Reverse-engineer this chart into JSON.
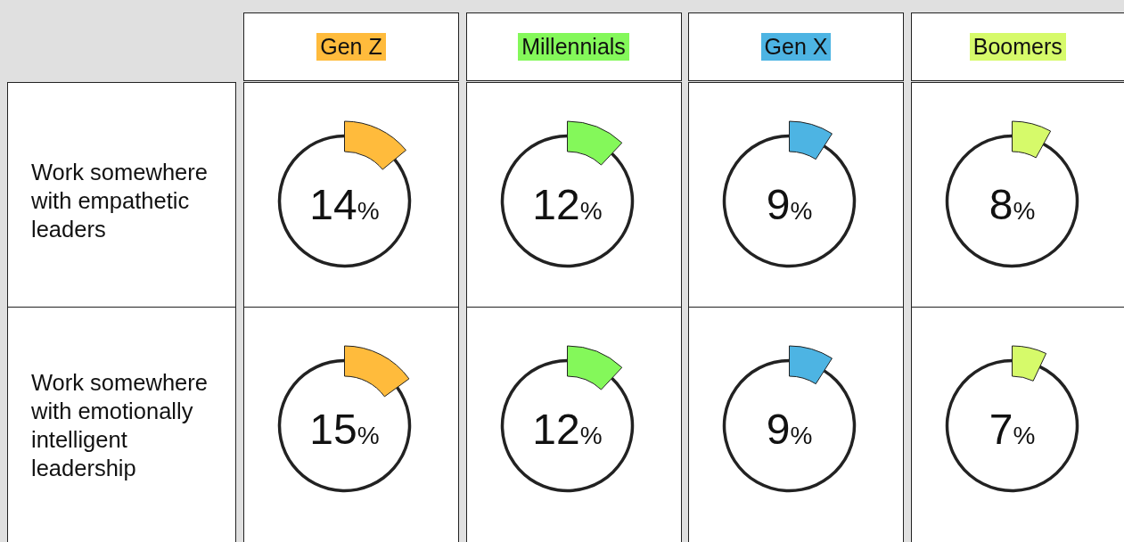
{
  "chart_data": [
    {
      "type": "other",
      "title": "Work somewhere with empathetic leaders"
    },
    {
      "type": "donut",
      "title": "Gen Z",
      "categories": [
        null,
        null
      ],
      "values": [
        14,
        86
      ],
      "colors": [
        "#ffbb3c",
        "#222222"
      ],
      "annotations": [
        "14%"
      ]
    },
    {
      "type": "donut",
      "title": "Millennials",
      "categories": [
        null,
        null
      ],
      "values": [
        12,
        88
      ],
      "colors": [
        "#84f85a",
        "#222222"
      ],
      "annotations": [
        "12%"
      ]
    },
    {
      "type": "donut",
      "title": "Gen X",
      "categories": [
        null,
        null
      ],
      "values": [
        9,
        91
      ],
      "colors": [
        "#4db4e3",
        "#222222"
      ],
      "annotations": [
        "9%"
      ]
    },
    {
      "type": "donut",
      "title": "Boomers",
      "categories": [
        null,
        null
      ],
      "values": [
        8,
        92
      ],
      "colors": [
        "#d6fa6a",
        "#222222"
      ],
      "annotations": [
        "8%"
      ]
    },
    {
      "type": "other",
      "title": "Work somewhere with emotionally intelligent leadership"
    },
    {
      "type": "donut",
      "categories": [
        null,
        null
      ],
      "values": [
        15,
        85
      ],
      "colors": [
        "#ffbb3c",
        "#222222"
      ],
      "annotations": [
        "15%"
      ]
    },
    {
      "type": "donut",
      "categories": [
        null,
        null
      ],
      "values": [
        12,
        88
      ],
      "colors": [
        "#84f85a",
        "#222222"
      ],
      "annotations": [
        "12%"
      ]
    },
    {
      "type": "donut",
      "categories": [
        null,
        null
      ],
      "values": [
        9,
        91
      ],
      "colors": [
        "#4db4e3",
        "#222222"
      ],
      "annotations": [
        "9%"
      ]
    },
    {
      "type": "donut",
      "categories": [
        null,
        null
      ],
      "values": [
        7,
        93
      ],
      "colors": [
        "#d6fa6a",
        "#222222"
      ],
      "annotations": [
        "7%"
      ]
    }
  ]
}
